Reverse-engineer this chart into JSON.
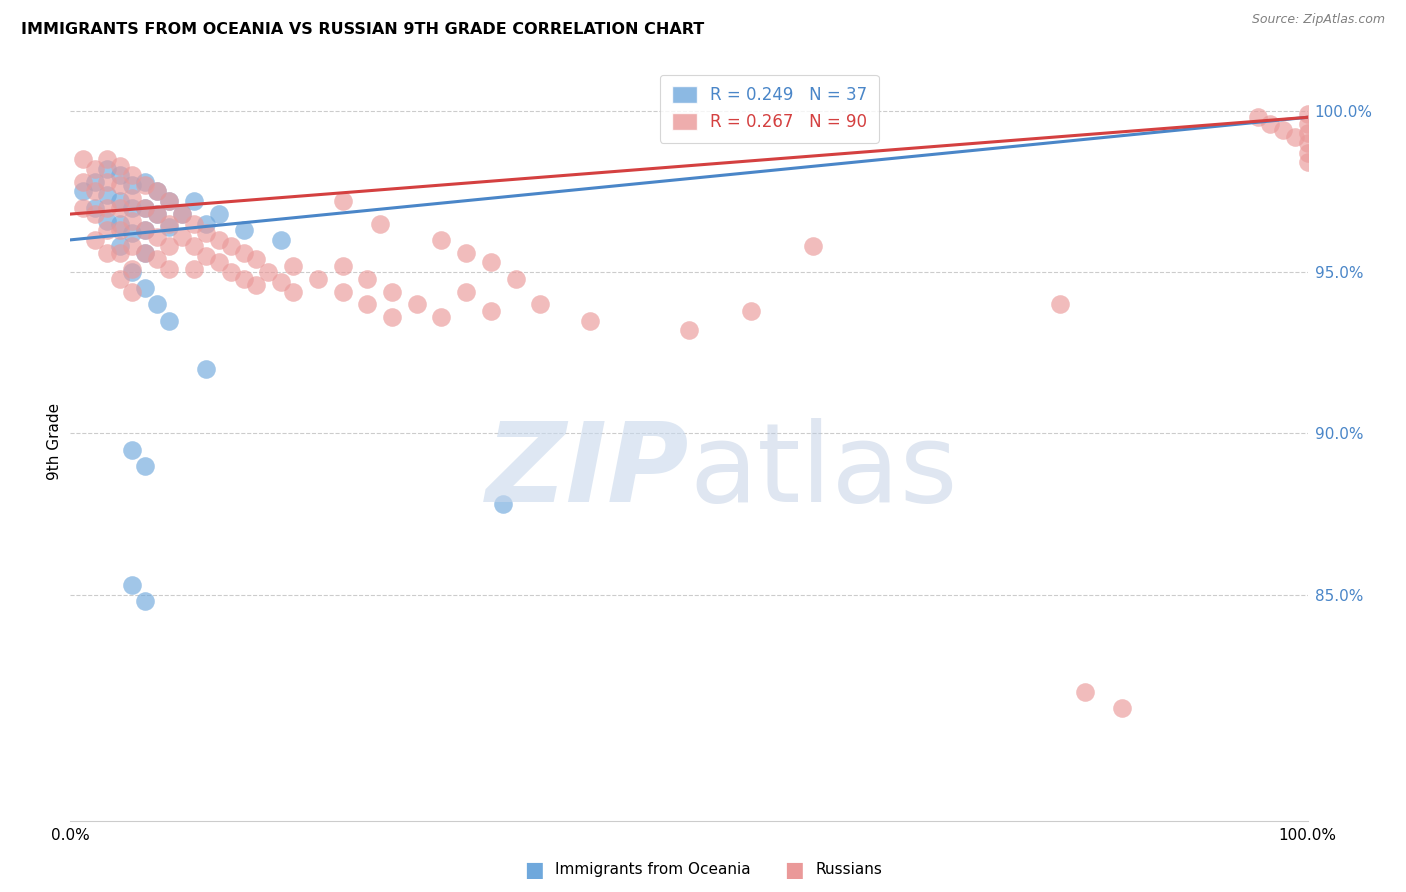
{
  "title": "IMMIGRANTS FROM OCEANIA VS RUSSIAN 9TH GRADE CORRELATION CHART",
  "source": "Source: ZipAtlas.com",
  "ylabel": "9th Grade",
  "legend1_r": "0.249",
  "legend1_n": "37",
  "legend2_r": "0.267",
  "legend2_n": "90",
  "blue_color": "#6fa8dc",
  "pink_color": "#ea9999",
  "blue_line_color": "#4a86c8",
  "pink_line_color": "#d44040",
  "xlim": [
    0.0,
    1.0
  ],
  "ylim": [
    0.78,
    1.015
  ],
  "right_ytick_vals": [
    1.0,
    0.95,
    0.9,
    0.85
  ],
  "right_ytick_labels": [
    "100.0%",
    "95.0%",
    "90.0%",
    "85.0%"
  ],
  "blue_x": [
    0.01,
    0.02,
    0.02,
    0.03,
    0.03,
    0.03,
    0.04,
    0.04,
    0.04,
    0.04,
    0.05,
    0.05,
    0.05,
    0.06,
    0.06,
    0.06,
    0.06,
    0.07,
    0.07,
    0.08,
    0.08,
    0.09,
    0.1,
    0.11,
    0.12,
    0.14,
    0.17,
    0.05,
    0.06,
    0.07,
    0.08,
    0.11,
    0.35,
    0.05,
    0.06,
    0.05,
    0.06
  ],
  "blue_y": [
    0.975,
    0.978,
    0.97,
    0.982,
    0.974,
    0.966,
    0.98,
    0.972,
    0.965,
    0.958,
    0.977,
    0.97,
    0.962,
    0.978,
    0.97,
    0.963,
    0.956,
    0.975,
    0.968,
    0.972,
    0.964,
    0.968,
    0.972,
    0.965,
    0.968,
    0.963,
    0.96,
    0.95,
    0.945,
    0.94,
    0.935,
    0.92,
    0.878,
    0.853,
    0.848,
    0.895,
    0.89
  ],
  "pink_x": [
    0.01,
    0.01,
    0.01,
    0.02,
    0.02,
    0.02,
    0.02,
    0.03,
    0.03,
    0.03,
    0.03,
    0.03,
    0.04,
    0.04,
    0.04,
    0.04,
    0.04,
    0.04,
    0.05,
    0.05,
    0.05,
    0.05,
    0.05,
    0.05,
    0.06,
    0.06,
    0.06,
    0.06,
    0.07,
    0.07,
    0.07,
    0.07,
    0.08,
    0.08,
    0.08,
    0.08,
    0.09,
    0.09,
    0.1,
    0.1,
    0.1,
    0.11,
    0.11,
    0.12,
    0.12,
    0.13,
    0.13,
    0.14,
    0.14,
    0.15,
    0.15,
    0.16,
    0.17,
    0.18,
    0.18,
    0.2,
    0.22,
    0.22,
    0.24,
    0.24,
    0.26,
    0.26,
    0.28,
    0.3,
    0.32,
    0.34,
    0.38,
    0.42,
    0.5,
    0.55,
    0.3,
    0.32,
    0.34,
    0.36,
    0.22,
    0.25,
    0.96,
    0.97,
    0.98,
    0.99,
    1.0,
    1.0,
    1.0,
    1.0,
    1.0,
    1.0,
    0.82,
    0.85,
    0.6,
    0.8
  ],
  "pink_y": [
    0.985,
    0.978,
    0.97,
    0.982,
    0.975,
    0.968,
    0.96,
    0.985,
    0.978,
    0.97,
    0.963,
    0.956,
    0.983,
    0.977,
    0.97,
    0.963,
    0.956,
    0.948,
    0.98,
    0.973,
    0.966,
    0.958,
    0.951,
    0.944,
    0.977,
    0.97,
    0.963,
    0.956,
    0.975,
    0.968,
    0.961,
    0.954,
    0.972,
    0.965,
    0.958,
    0.951,
    0.968,
    0.961,
    0.965,
    0.958,
    0.951,
    0.962,
    0.955,
    0.96,
    0.953,
    0.958,
    0.95,
    0.956,
    0.948,
    0.954,
    0.946,
    0.95,
    0.947,
    0.952,
    0.944,
    0.948,
    0.952,
    0.944,
    0.948,
    0.94,
    0.944,
    0.936,
    0.94,
    0.936,
    0.944,
    0.938,
    0.94,
    0.935,
    0.932,
    0.938,
    0.96,
    0.956,
    0.953,
    0.948,
    0.972,
    0.965,
    0.998,
    0.996,
    0.994,
    0.992,
    0.999,
    0.996,
    0.993,
    0.99,
    0.987,
    0.984,
    0.82,
    0.815,
    0.958,
    0.94
  ]
}
